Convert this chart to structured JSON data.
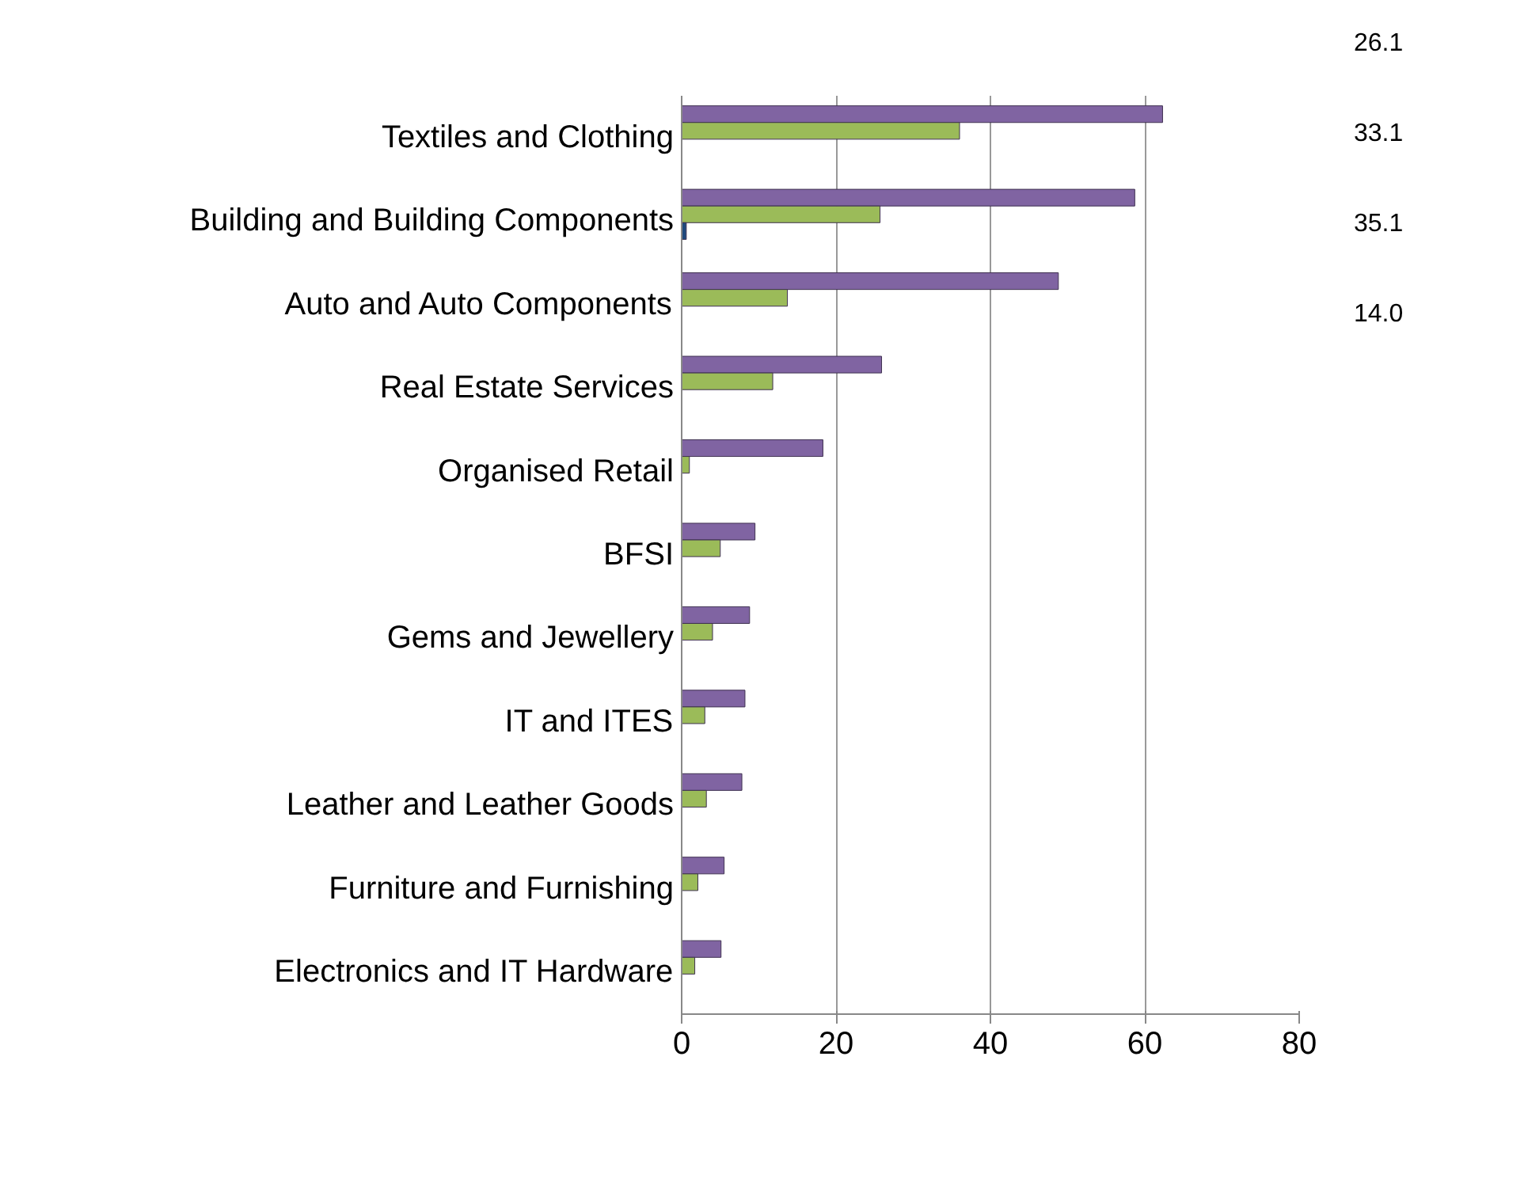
{
  "chart_data": {
    "type": "bar",
    "orientation": "horizontal",
    "categories": [
      "Textiles and Clothing",
      "Building and Building Components",
      "Auto and Auto Components",
      "Real Estate Services",
      "Organised Retail",
      "BFSI",
      "Gems and Jewellery",
      "IT and ITES",
      "Leather and Leather Goods",
      "Furniture and Furnishing",
      "Electronics and IT Hardware"
    ],
    "series": [
      {
        "color": "#8064a2",
        "values": [
          62.3,
          58.7,
          48.8,
          25.9,
          18.3,
          9.5,
          8.8,
          8.2,
          7.8,
          5.5,
          5.1
        ]
      },
      {
        "color": "#9bbb59",
        "values": [
          36,
          25.7,
          13.7,
          11.8,
          1,
          5,
          4,
          3,
          3.2,
          2.1,
          1.7
        ]
      },
      {
        "color": "#1f497d",
        "values": [
          null,
          0.6,
          null,
          null,
          null,
          null,
          null,
          null,
          null,
          null,
          null
        ]
      }
    ],
    "xlim": [
      0,
      80
    ],
    "xticks": [
      0,
      20,
      40,
      60,
      80
    ],
    "grid": "x",
    "annotations": [
      "26.1",
      "33.1",
      "35.1",
      "14.0"
    ]
  }
}
